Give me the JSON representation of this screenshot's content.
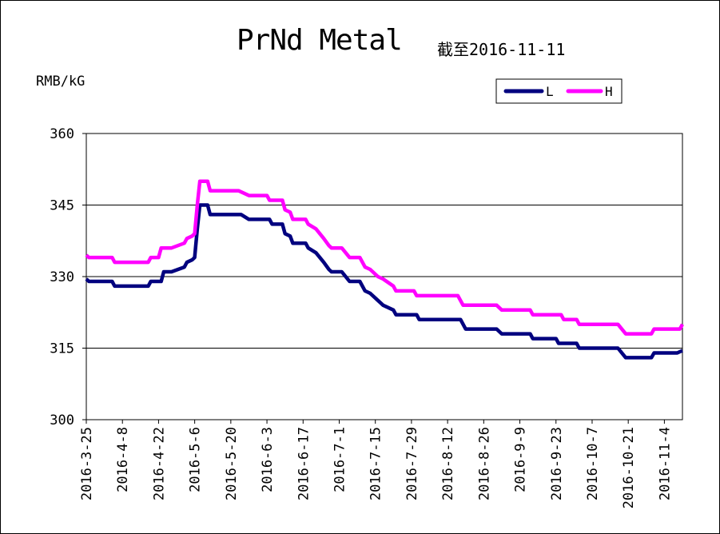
{
  "chart_data": {
    "type": "line",
    "title": "PrNd Metal",
    "subtitle": "截至2016-11-11",
    "ylabel": "RMB/kG",
    "xlabel": "",
    "ylim": [
      300,
      360
    ],
    "yticks": [
      "300",
      "315",
      "330",
      "345",
      "360"
    ],
    "xlim": [
      "2016-03-25",
      "2016-11-11"
    ],
    "xtick_labels": [
      "2016-3-25",
      "2016-4-8",
      "2016-4-22",
      "2016-5-6",
      "2016-5-20",
      "2016-6-3",
      "2016-6-17",
      "2016-7-1",
      "2016-7-15",
      "2016-7-29",
      "2016-8-12",
      "2016-8-26",
      "2016-9-9",
      "2016-9-23",
      "2016-10-7",
      "2016-10-21",
      "2016-11-4"
    ],
    "grid": "horizontal",
    "legend_position": "top-right",
    "series": [
      {
        "name": "L",
        "color": "#00007f",
        "points": [
          [
            "2016-03-25",
            329.5
          ],
          [
            "2016-03-26",
            329
          ],
          [
            "2016-04-04",
            329
          ],
          [
            "2016-04-05",
            328
          ],
          [
            "2016-04-18",
            328
          ],
          [
            "2016-04-19",
            329
          ],
          [
            "2016-04-23",
            329
          ],
          [
            "2016-04-24",
            331
          ],
          [
            "2016-04-27",
            331
          ],
          [
            "2016-05-02",
            332
          ],
          [
            "2016-05-03",
            333
          ],
          [
            "2016-05-05",
            333.5
          ],
          [
            "2016-05-06",
            334
          ],
          [
            "2016-05-07",
            340
          ],
          [
            "2016-05-08",
            345
          ],
          [
            "2016-05-11",
            345
          ],
          [
            "2016-05-12",
            343
          ],
          [
            "2016-05-24",
            343
          ],
          [
            "2016-05-27",
            342
          ],
          [
            "2016-06-04",
            342
          ],
          [
            "2016-06-05",
            341
          ],
          [
            "2016-06-09",
            341
          ],
          [
            "2016-06-10",
            339
          ],
          [
            "2016-06-12",
            338.5
          ],
          [
            "2016-06-13",
            337
          ],
          [
            "2016-06-18",
            337
          ],
          [
            "2016-06-19",
            336
          ],
          [
            "2016-06-22",
            335
          ],
          [
            "2016-06-25",
            333
          ],
          [
            "2016-06-27",
            331.5
          ],
          [
            "2016-06-28",
            331
          ],
          [
            "2016-07-02",
            331
          ],
          [
            "2016-07-05",
            329
          ],
          [
            "2016-07-09",
            329
          ],
          [
            "2016-07-11",
            327
          ],
          [
            "2016-07-13",
            326.5
          ],
          [
            "2016-07-16",
            325
          ],
          [
            "2016-07-18",
            324
          ],
          [
            "2016-07-22",
            323
          ],
          [
            "2016-07-23",
            322
          ],
          [
            "2016-07-31",
            322
          ],
          [
            "2016-08-01",
            321
          ],
          [
            "2016-08-17",
            321
          ],
          [
            "2016-08-19",
            319
          ],
          [
            "2016-08-31",
            319
          ],
          [
            "2016-09-02",
            318
          ],
          [
            "2016-09-13",
            318
          ],
          [
            "2016-09-14",
            317
          ],
          [
            "2016-09-23",
            317
          ],
          [
            "2016-09-24",
            316
          ],
          [
            "2016-10-01",
            316
          ],
          [
            "2016-10-02",
            315
          ],
          [
            "2016-10-17",
            315
          ],
          [
            "2016-10-20",
            313
          ],
          [
            "2016-10-30",
            313
          ],
          [
            "2016-10-31",
            314
          ],
          [
            "2016-11-09",
            314
          ],
          [
            "2016-11-11",
            314.5
          ]
        ]
      },
      {
        "name": "H",
        "color": "#ff00ff",
        "points": [
          [
            "2016-03-25",
            334.5
          ],
          [
            "2016-03-26",
            334
          ],
          [
            "2016-04-04",
            334
          ],
          [
            "2016-04-05",
            333
          ],
          [
            "2016-04-18",
            333
          ],
          [
            "2016-04-19",
            334
          ],
          [
            "2016-04-22",
            334
          ],
          [
            "2016-04-23",
            336
          ],
          [
            "2016-04-27",
            336
          ],
          [
            "2016-05-02",
            337
          ],
          [
            "2016-05-03",
            338
          ],
          [
            "2016-05-05",
            338.5
          ],
          [
            "2016-05-06",
            339
          ],
          [
            "2016-05-07",
            345
          ],
          [
            "2016-05-08",
            350
          ],
          [
            "2016-05-11",
            350
          ],
          [
            "2016-05-12",
            348
          ],
          [
            "2016-05-23",
            348
          ],
          [
            "2016-05-27",
            347
          ],
          [
            "2016-06-03",
            347
          ],
          [
            "2016-06-04",
            346
          ],
          [
            "2016-06-09",
            346
          ],
          [
            "2016-06-10",
            344
          ],
          [
            "2016-06-12",
            343.5
          ],
          [
            "2016-06-13",
            342
          ],
          [
            "2016-06-18",
            342
          ],
          [
            "2016-06-19",
            341
          ],
          [
            "2016-06-22",
            340
          ],
          [
            "2016-06-25",
            338
          ],
          [
            "2016-06-27",
            336.5
          ],
          [
            "2016-06-28",
            336
          ],
          [
            "2016-07-02",
            336
          ],
          [
            "2016-07-05",
            334
          ],
          [
            "2016-07-09",
            334
          ],
          [
            "2016-07-11",
            332
          ],
          [
            "2016-07-13",
            331.5
          ],
          [
            "2016-07-16",
            330
          ],
          [
            "2016-07-18",
            329.5
          ],
          [
            "2016-07-22",
            328
          ],
          [
            "2016-07-23",
            327
          ],
          [
            "2016-07-30",
            327
          ],
          [
            "2016-07-31",
            326
          ],
          [
            "2016-08-16",
            326
          ],
          [
            "2016-08-18",
            324
          ],
          [
            "2016-08-31",
            324
          ],
          [
            "2016-09-02",
            323
          ],
          [
            "2016-09-13",
            323
          ],
          [
            "2016-09-14",
            322
          ],
          [
            "2016-09-25",
            322
          ],
          [
            "2016-09-26",
            321
          ],
          [
            "2016-10-01",
            321
          ],
          [
            "2016-10-02",
            320
          ],
          [
            "2016-10-17",
            320
          ],
          [
            "2016-10-20",
            318
          ],
          [
            "2016-10-30",
            318
          ],
          [
            "2016-10-31",
            319
          ],
          [
            "2016-11-10",
            319
          ],
          [
            "2016-11-11",
            320
          ]
        ]
      }
    ]
  }
}
